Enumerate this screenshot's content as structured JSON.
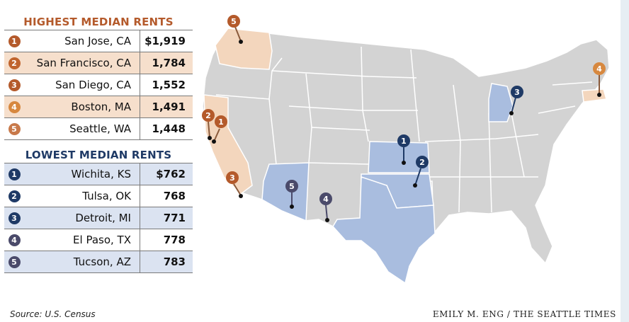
{
  "highest": {
    "title": "HIGHEST MEDIAN RENTS",
    "rows": [
      {
        "rank": "1",
        "city": "San Jose, CA",
        "rent": "$1,919"
      },
      {
        "rank": "2",
        "city": "San Francisco, CA",
        "rent": "1,784"
      },
      {
        "rank": "3",
        "city": "San Diego, CA",
        "rent": "1,552"
      },
      {
        "rank": "4",
        "city": "Boston, MA",
        "rent": "1,491"
      },
      {
        "rank": "5",
        "city": "Seattle, WA",
        "rent": "1,448"
      }
    ]
  },
  "lowest": {
    "title": "LOWEST MEDIAN RENTS",
    "rows": [
      {
        "rank": "1",
        "city": "Wichita, KS",
        "rent": "$762"
      },
      {
        "rank": "2",
        "city": "Tulsa, OK",
        "rent": "768"
      },
      {
        "rank": "3",
        "city": "Detroit, MI",
        "rent": "771"
      },
      {
        "rank": "4",
        "city": "El Paso, TX",
        "rent": "778"
      },
      {
        "rank": "5",
        "city": "Tucson, AZ",
        "rent": "783"
      }
    ]
  },
  "map": {
    "high_pins": [
      "1",
      "2",
      "3",
      "4",
      "5"
    ],
    "low_pins": [
      "1",
      "2",
      "3",
      "4",
      "5"
    ],
    "colors": {
      "high_state": "#f3d6bd",
      "low_state": "#a9bddf",
      "other_state": "#d3d3d3",
      "high_pin": "#b45a2b",
      "low_pin": "#1f3a66",
      "low_pin_alt": "#4a4a6a"
    }
  },
  "footer": {
    "source": "Source: U.S. Census",
    "credit": "EMILY M. ENG / THE SEATTLE TIMES"
  }
}
